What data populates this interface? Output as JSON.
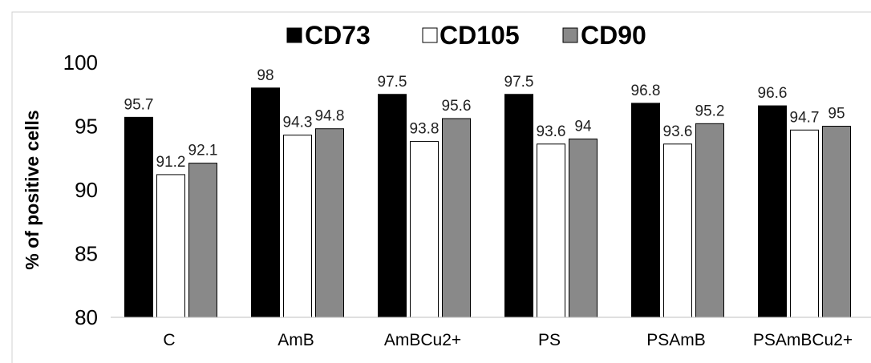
{
  "chart_data": {
    "type": "bar",
    "categories": [
      "C",
      "AmB",
      "AmBCu2+",
      "PS",
      "PSAmB",
      "PSAmBCu2+"
    ],
    "series": [
      {
        "name": "CD73",
        "values": [
          95.7,
          98,
          97.5,
          97.5,
          96.8,
          96.6
        ],
        "labels": [
          "95.7",
          "98",
          "97.5",
          "97.5",
          "96.8",
          "96.6"
        ],
        "color": "#000000"
      },
      {
        "name": "CD105",
        "values": [
          91.2,
          94.3,
          93.8,
          93.6,
          93.6,
          94.7
        ],
        "labels": [
          "91.2",
          "94.3",
          "93.8",
          "93.6",
          "93.6",
          "94.7"
        ],
        "color": "#ffffff"
      },
      {
        "name": "CD90",
        "values": [
          92.1,
          94.8,
          95.6,
          94,
          95.2,
          95
        ],
        "labels": [
          "92.1",
          "94.8",
          "95.6",
          "94",
          "95.2",
          "95"
        ],
        "color": "#898989"
      }
    ],
    "title": "",
    "xlabel": "",
    "ylabel": "% of positive cells",
    "ylim": [
      80,
      100
    ],
    "yticks": [
      "80",
      "85",
      "90",
      "95",
      "100"
    ],
    "grid": false,
    "legend": "top-center"
  }
}
